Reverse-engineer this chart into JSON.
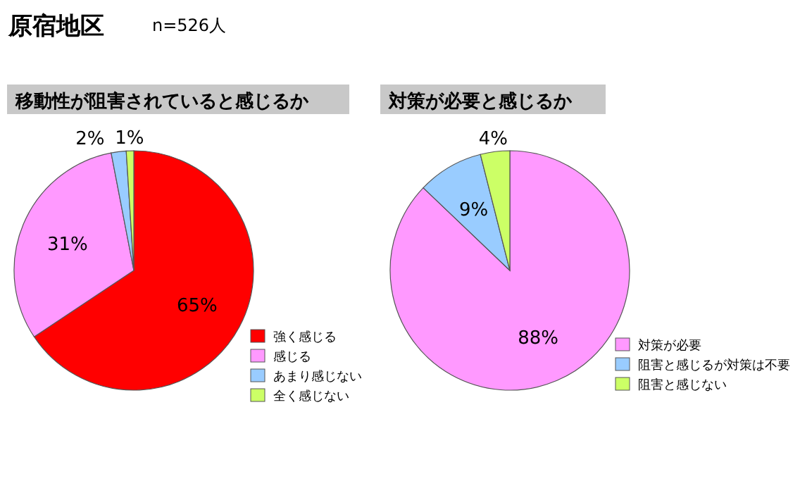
{
  "chart_data": [
    {
      "type": "pie",
      "title": "移動性が阻害されていると感じるか",
      "annotations": [
        "原宿地区",
        "n=526人"
      ],
      "categories": [
        "強く感じる",
        "感じる",
        "あまり感じない",
        "全く感じない"
      ],
      "values": [
        65,
        31,
        2,
        1
      ],
      "value_labels": [
        "65%",
        "31%",
        "2%",
        "1%"
      ],
      "colors": [
        "#ff0000",
        "#ff99ff",
        "#99ccff",
        "#ccff66"
      ],
      "legend": "bottom right"
    },
    {
      "type": "pie",
      "title": "対策が必要と感じるか",
      "categories": [
        "対策が必要",
        "阻害と感じるが対策は不要",
        "阻害と感じない"
      ],
      "values": [
        88,
        9,
        4
      ],
      "value_labels": [
        "88%",
        "9%",
        "4%"
      ],
      "colors": [
        "#ff99ff",
        "#99ccff",
        "#ccff66"
      ],
      "legend": "bottom right"
    }
  ]
}
